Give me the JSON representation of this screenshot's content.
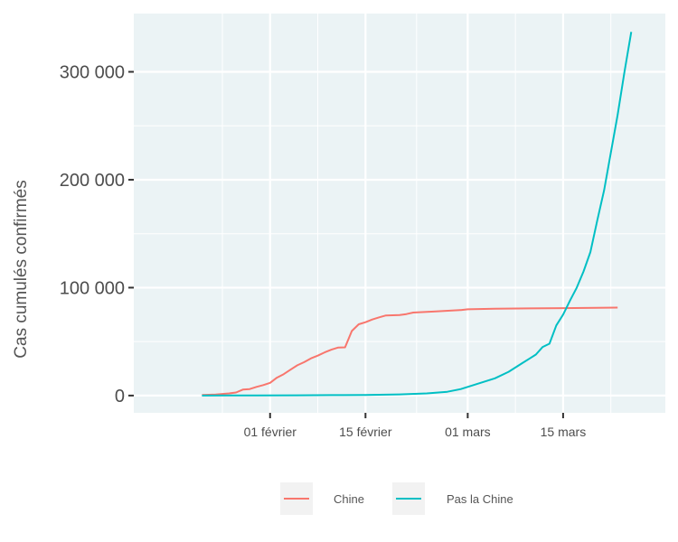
{
  "chart_data": {
    "type": "line",
    "title": "",
    "xlabel": "",
    "ylabel": "Cas cumulés confirmés",
    "x_type": "date",
    "xlim": [
      "2020-01-12",
      "2020-03-30"
    ],
    "ylim": [
      -16000,
      354000
    ],
    "y_ticks": [
      0,
      100000,
      200000,
      300000
    ],
    "y_tick_labels": [
      "0",
      "100 000",
      "200 000",
      "300 000"
    ],
    "x_ticks": [
      "2020-02-01",
      "2020-02-15",
      "2020-03-01",
      "2020-03-15"
    ],
    "x_tick_labels": [
      "01 février",
      "15 février",
      "01 mars",
      "15 mars"
    ],
    "grid": true,
    "legend": "bottom",
    "series": [
      {
        "name": "Chine",
        "color": "#f8766d",
        "points": [
          [
            "2020-01-22",
            548
          ],
          [
            "2020-01-24",
            1000
          ],
          [
            "2020-01-26",
            2000
          ],
          [
            "2020-01-27",
            2800
          ],
          [
            "2020-01-28",
            5500
          ],
          [
            "2020-01-29",
            6000
          ],
          [
            "2020-01-30",
            8000
          ],
          [
            "2020-01-31",
            9700
          ],
          [
            "2020-02-01",
            11800
          ],
          [
            "2020-02-02",
            16600
          ],
          [
            "2020-02-03",
            19800
          ],
          [
            "2020-02-04",
            24000
          ],
          [
            "2020-02-05",
            28000
          ],
          [
            "2020-02-06",
            31000
          ],
          [
            "2020-02-07",
            34500
          ],
          [
            "2020-02-08",
            37000
          ],
          [
            "2020-02-09",
            40000
          ],
          [
            "2020-02-10",
            42500
          ],
          [
            "2020-02-11",
            44500
          ],
          [
            "2020-02-12",
            44700
          ],
          [
            "2020-02-13",
            59800
          ],
          [
            "2020-02-14",
            66000
          ],
          [
            "2020-02-15",
            68000
          ],
          [
            "2020-02-16",
            70500
          ],
          [
            "2020-02-17",
            72500
          ],
          [
            "2020-02-18",
            74200
          ],
          [
            "2020-02-20",
            74700
          ],
          [
            "2020-02-21",
            75500
          ],
          [
            "2020-02-22",
            76900
          ],
          [
            "2020-02-25",
            77800
          ],
          [
            "2020-02-29",
            79300
          ],
          [
            "2020-03-01",
            79900
          ],
          [
            "2020-03-05",
            80500
          ],
          [
            "2020-03-10",
            80800
          ],
          [
            "2020-03-15",
            81000
          ],
          [
            "2020-03-20",
            81250
          ],
          [
            "2020-03-23",
            81500
          ]
        ]
      },
      {
        "name": "Pas la Chine",
        "color": "#00bfc4",
        "points": [
          [
            "2020-01-22",
            10
          ],
          [
            "2020-01-30",
            150
          ],
          [
            "2020-02-05",
            250
          ],
          [
            "2020-02-10",
            400
          ],
          [
            "2020-02-15",
            600
          ],
          [
            "2020-02-20",
            1100
          ],
          [
            "2020-02-24",
            2000
          ],
          [
            "2020-02-27",
            3500
          ],
          [
            "2020-02-29",
            6000
          ],
          [
            "2020-03-02",
            10000
          ],
          [
            "2020-03-05",
            16000
          ],
          [
            "2020-03-07",
            22000
          ],
          [
            "2020-03-09",
            30000
          ],
          [
            "2020-03-10",
            34000
          ],
          [
            "2020-03-11",
            38000
          ],
          [
            "2020-03-12",
            45000
          ],
          [
            "2020-03-13",
            48000
          ],
          [
            "2020-03-14",
            65000
          ],
          [
            "2020-03-15",
            75000
          ],
          [
            "2020-03-16",
            88000
          ],
          [
            "2020-03-17",
            100000
          ],
          [
            "2020-03-18",
            115000
          ],
          [
            "2020-03-19",
            133000
          ],
          [
            "2020-03-20",
            162000
          ],
          [
            "2020-03-21",
            190000
          ],
          [
            "2020-03-22",
            225000
          ],
          [
            "2020-03-23",
            260000
          ],
          [
            "2020-03-24",
            300000
          ],
          [
            "2020-03-25",
            337000
          ]
        ]
      }
    ]
  }
}
